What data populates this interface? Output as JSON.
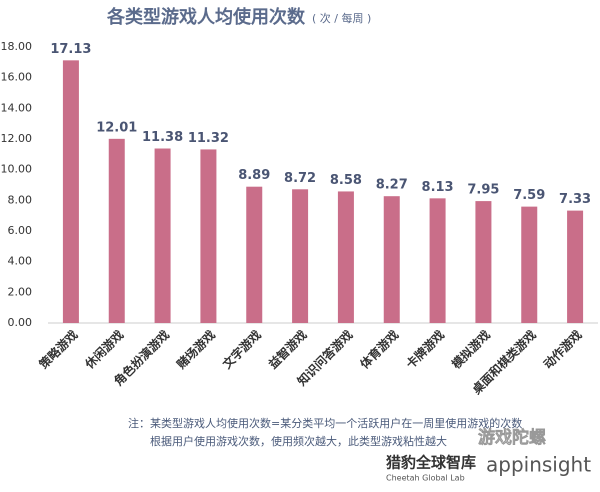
{
  "chart_data": {
    "type": "bar",
    "title": "各类型游戏人均使用次数",
    "subtitle": "( 次 / 每周 )",
    "categories": [
      "策略游戏",
      "休闲游戏",
      "角色扮演游戏",
      "赌场游戏",
      "文字游戏",
      "益智游戏",
      "知识问答游戏",
      "体育游戏",
      "卡牌游戏",
      "模拟游戏",
      "桌面和棋类游戏",
      "动作游戏"
    ],
    "values": [
      17.13,
      12.01,
      11.38,
      11.32,
      8.89,
      8.72,
      8.58,
      8.27,
      8.13,
      7.95,
      7.59,
      7.33
    ],
    "color": "#c96e89",
    "ylim": [
      0,
      18
    ],
    "yticks": [
      {
        "value": 0,
        "label": "0.00"
      },
      {
        "value": 2,
        "label": "2.00"
      },
      {
        "value": 4,
        "label": "4.00"
      },
      {
        "value": 6,
        "label": "6.00"
      },
      {
        "value": 8,
        "label": "8.00"
      },
      {
        "value": 10,
        "label": "10.00"
      },
      {
        "value": 12,
        "label": "12.00"
      },
      {
        "value": 14,
        "label": "14.00"
      },
      {
        "value": 16,
        "label": "16.00"
      },
      {
        "value": 18,
        "label": "18.00"
      }
    ],
    "grid": false,
    "notes": [
      "注：某类型游戏人均使用次数=某分类平均一个活跃用户在一周里使用游戏的次数",
      "根据用户使用游戏次数，使用频次越大，此类型游戏粘性越大"
    ],
    "logos": [
      "猎豹全球智库",
      "Cheetah Global Lab",
      "appinsight",
      "游戏陀螺"
    ]
  }
}
